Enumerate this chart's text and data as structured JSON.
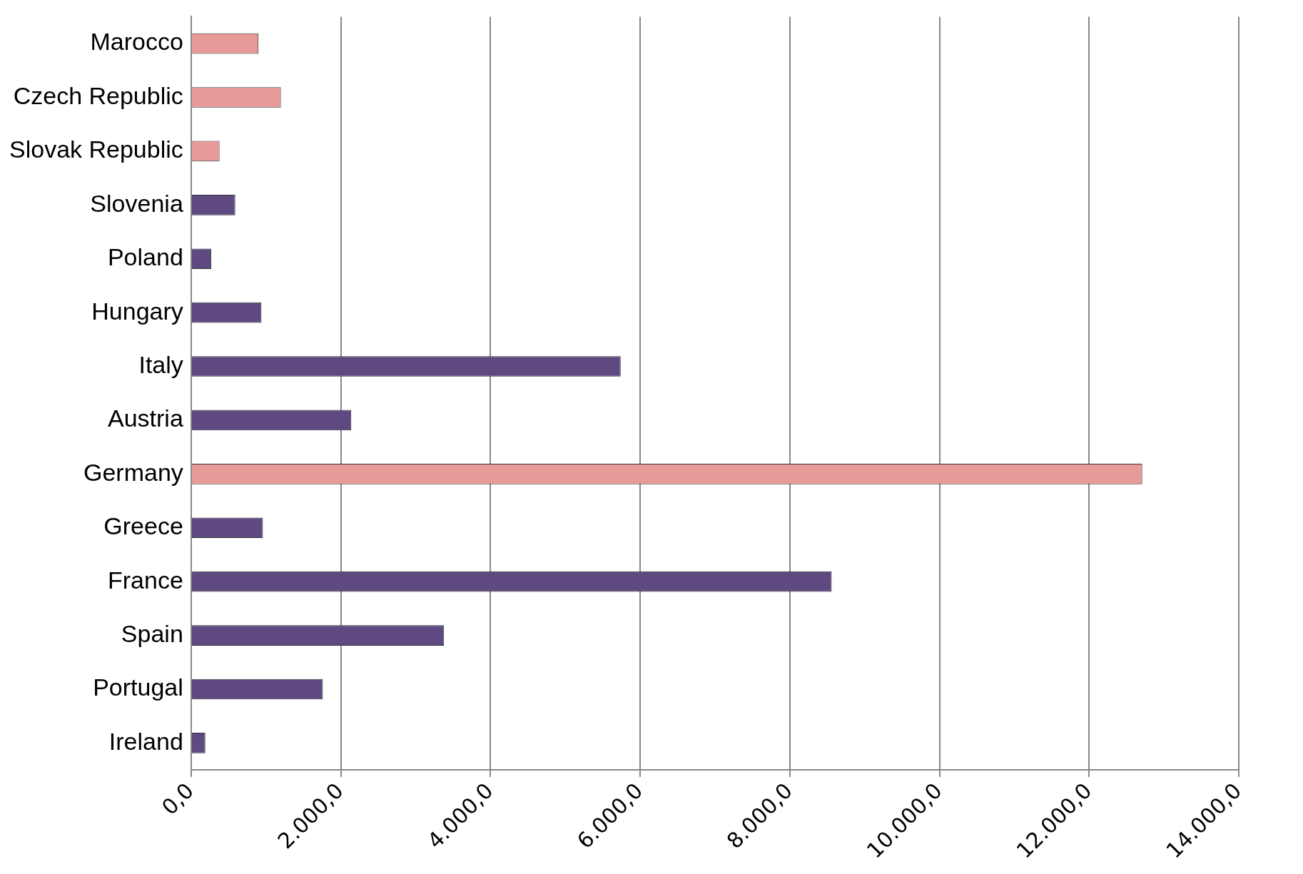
{
  "chart_data": {
    "type": "bar",
    "orientation": "horizontal",
    "categories": [
      "Marocco",
      "Czech Republic",
      "Slovak Republic",
      "Slovenia",
      "Poland",
      "Hungary",
      "Italy",
      "Austria",
      "Germany",
      "Greece",
      "France",
      "Spain",
      "Portugal",
      "Ireland"
    ],
    "values": [
      900,
      1200,
      380,
      590,
      270,
      940,
      5740,
      2140,
      12710,
      960,
      8560,
      3380,
      1760,
      190
    ],
    "colors": [
      "#e89a98",
      "#e89a98",
      "#e89a98",
      "#5e4a80",
      "#5e4a80",
      "#5e4a80",
      "#5e4a80",
      "#5e4a80",
      "#e89a98",
      "#5e4a80",
      "#5e4a80",
      "#5e4a80",
      "#5e4a80",
      "#5e4a80"
    ],
    "xlim": [
      0,
      14000
    ],
    "xticks": [
      {
        "value": 0,
        "label": "0,0"
      },
      {
        "value": 2000,
        "label": "2.000,0"
      },
      {
        "value": 4000,
        "label": "4.000,0"
      },
      {
        "value": 6000,
        "label": "6.000,0"
      },
      {
        "value": 8000,
        "label": "8.000,0"
      },
      {
        "value": 10000,
        "label": "10.000,0"
      },
      {
        "value": 12000,
        "label": "12.000,0"
      },
      {
        "value": 14000,
        "label": "14.000,0"
      }
    ],
    "grid": "x",
    "legend": false
  }
}
